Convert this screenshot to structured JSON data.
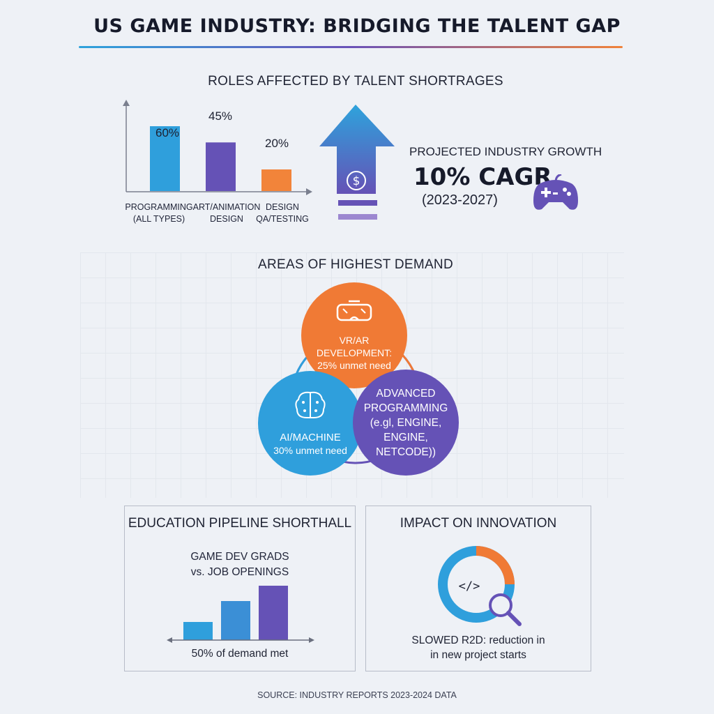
{
  "header": {
    "title": "US GAME INDUSTRY: BRIDGING THE TALENT GAP"
  },
  "roles": {
    "heading": "ROLES AFFECTED BY TALENT SHORTRAGES",
    "bars": [
      {
        "value_label": "60%",
        "label_line1": "PROGRAMMING",
        "label_line2": "(ALL TYPES)",
        "color": "#2f9fdc"
      },
      {
        "value_label": "45%",
        "label_line1": "ART/ANIMATION",
        "label_line2": "DESIGN",
        "color": "#6552b6"
      },
      {
        "value_label": "20%",
        "label_line1": "DESIGN",
        "label_line2": "QA/TESTING",
        "color": "#f2843a"
      }
    ]
  },
  "chart_data": {
    "type": "bar",
    "title": "ROLES AFFECTED BY TALENT SHORTRAGES",
    "categories": [
      "PROGRAMMING (ALL TYPES)",
      "ART/ANIMATION DESIGN",
      "DESIGN QA/TESTING"
    ],
    "values": [
      60,
      45,
      20
    ],
    "unit": "%"
  },
  "growth": {
    "label": "PROJECTED INDUSTRY GROWTH",
    "value": "10% CAGR",
    "years": "(2023-2027)",
    "arrow_icon": "dollar-up-arrow-icon",
    "controller_icon": "gamepad-icon"
  },
  "demand": {
    "heading": "AREAS OF HIGHEST DEMAND",
    "areas": [
      {
        "line1": "VR/AR DEVELOPMENT:",
        "line2": "25% unmet need",
        "icon": "vr-headset-icon",
        "color": "#f07a35"
      },
      {
        "line1": "AI/MACHINE",
        "line2": "30% unmet need",
        "icon": "brain-icon",
        "color": "#2f9fdc"
      },
      {
        "line1": "ADVANCED",
        "line2": "PROGRAMMING",
        "line3": "(e.gl, ENGINE,",
        "line4": "ENGINE,",
        "line5": "NETCODE))",
        "color": "#6552b6"
      }
    ]
  },
  "education": {
    "title": "EDUCATION PIPELINE SHORTHALL",
    "sub_line1": "GAME DEV GRADS",
    "sub_line2": "vs. JOB OPENINGS",
    "caption": "50% of demand met"
  },
  "innovation": {
    "title": "IMPACT ON INNOVATION",
    "code_glyph": "</>",
    "caption_line1": "SLOWED R2D: reduction in",
    "caption_line2": "in new project starts"
  },
  "footer": {
    "source": "SOURCE: INDUSTRY REPORTS 2023-2024 DATA"
  }
}
